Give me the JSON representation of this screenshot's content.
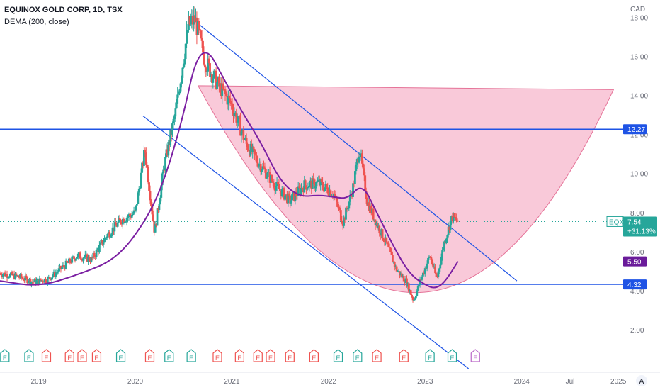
{
  "header": {
    "symbol_line": "EQUINOX GOLD CORP, 1D, TSX",
    "indicator_line": "DEMA (200, close)"
  },
  "colors": {
    "up": "#26a69a",
    "down": "#ef5350",
    "dema": "#7b1fa2",
    "trend": "#1e53e5",
    "cup_fill": "#f8bbd0",
    "cup_stroke": "#e57398",
    "price_badge": "#26a69a",
    "dema_badge": "#6a1b9a",
    "level_badge": "#1e53e5"
  },
  "chart_data": {
    "type": "candlestick",
    "currency": "CAD",
    "x_range": [
      2018.6,
      2025.05
    ],
    "y_range": [
      0.0,
      18.6
    ],
    "y_ticks": [
      "18.00",
      "16.00",
      "14.00",
      "12.00",
      "10.00",
      "8.00",
      "6.00",
      "4.00",
      "2.00"
    ],
    "y_tick_values": [
      18,
      16,
      14,
      12,
      10,
      8,
      6,
      4,
      2
    ],
    "x_ticks": [
      {
        "label": "2019",
        "t": 2019.0
      },
      {
        "label": "2020",
        "t": 2020.0
      },
      {
        "label": "2021",
        "t": 2021.0
      },
      {
        "label": "2022",
        "t": 2022.0
      },
      {
        "label": "2023",
        "t": 2023.0
      },
      {
        "label": "2024",
        "t": 2024.0
      },
      {
        "label": "Jul",
        "t": 2024.5
      },
      {
        "label": "2025",
        "t": 2025.0
      }
    ],
    "price_path": [
      [
        2018.6,
        4.9
      ],
      [
        2018.8,
        4.7
      ],
      [
        2018.95,
        4.45
      ],
      [
        2019.1,
        4.6
      ],
      [
        2019.25,
        5.2
      ],
      [
        2019.4,
        5.8
      ],
      [
        2019.55,
        5.6
      ],
      [
        2019.7,
        6.8
      ],
      [
        2019.85,
        7.6
      ],
      [
        2020.0,
        8.0
      ],
      [
        2020.1,
        11.2
      ],
      [
        2020.2,
        7.0
      ],
      [
        2020.3,
        10.4
      ],
      [
        2020.42,
        13.2
      ],
      [
        2020.55,
        17.6
      ],
      [
        2020.62,
        17.9
      ],
      [
        2020.72,
        15.8
      ],
      [
        2020.85,
        14.6
      ],
      [
        2021.0,
        13.5
      ],
      [
        2021.15,
        11.5
      ],
      [
        2021.3,
        10.4
      ],
      [
        2021.45,
        9.4
      ],
      [
        2021.6,
        8.6
      ],
      [
        2021.75,
        9.4
      ],
      [
        2021.9,
        9.5
      ],
      [
        2022.05,
        9.0
      ],
      [
        2022.15,
        7.5
      ],
      [
        2022.25,
        9.2
      ],
      [
        2022.32,
        11.3
      ],
      [
        2022.4,
        8.6
      ],
      [
        2022.5,
        7.4
      ],
      [
        2022.6,
        6.4
      ],
      [
        2022.7,
        5.1
      ],
      [
        2022.8,
        4.5
      ],
      [
        2022.88,
        3.5
      ],
      [
        2022.95,
        4.5
      ],
      [
        2023.05,
        5.8
      ],
      [
        2023.12,
        4.6
      ],
      [
        2023.2,
        6.5
      ],
      [
        2023.28,
        7.8
      ],
      [
        2023.34,
        7.54
      ]
    ],
    "dema_path": [
      [
        2018.6,
        4.5
      ],
      [
        2019.0,
        4.2
      ],
      [
        2019.4,
        4.8
      ],
      [
        2019.8,
        5.6
      ],
      [
        2020.1,
        7.5
      ],
      [
        2020.3,
        9.6
      ],
      [
        2020.5,
        13.0
      ],
      [
        2020.62,
        15.8
      ],
      [
        2020.75,
        16.4
      ],
      [
        2020.9,
        15.0
      ],
      [
        2021.1,
        13.2
      ],
      [
        2021.3,
        11.6
      ],
      [
        2021.5,
        9.6
      ],
      [
        2021.7,
        8.8
      ],
      [
        2021.9,
        8.9
      ],
      [
        2022.05,
        8.8
      ],
      [
        2022.2,
        8.7
      ],
      [
        2022.35,
        9.5
      ],
      [
        2022.5,
        8.0
      ],
      [
        2022.7,
        6.0
      ],
      [
        2022.85,
        4.8
      ],
      [
        2023.0,
        4.3
      ],
      [
        2023.1,
        4.1
      ],
      [
        2023.2,
        4.4
      ],
      [
        2023.34,
        5.5
      ]
    ],
    "horizontal_levels": [
      {
        "name": "resistance",
        "price": 12.27,
        "label": "12.27"
      },
      {
        "name": "support",
        "price": 4.32,
        "label": "4.32"
      }
    ],
    "trend_lines": [
      {
        "name": "upper-channel",
        "from": [
          2020.57,
          18.0
        ],
        "to": [
          2023.95,
          4.5
        ]
      },
      {
        "name": "lower-channel",
        "from": [
          2020.08,
          12.95
        ],
        "to": [
          2023.45,
          0.0
        ]
      }
    ],
    "cup": {
      "left": [
        2020.65,
        14.5
      ],
      "bottom": [
        2022.98,
        3.9
      ],
      "right": [
        2024.95,
        14.3
      ]
    },
    "last_price": {
      "ticker": "EQX",
      "price": "7.54",
      "change": "+31.13%",
      "value": 7.54
    },
    "dema_last": {
      "label": "5.50",
      "value": 5.5
    },
    "earnings_markers": [
      {
        "t": 2018.65,
        "type": "E",
        "color": "green"
      },
      {
        "t": 2018.9,
        "type": "E",
        "color": "green"
      },
      {
        "t": 2019.08,
        "type": "E",
        "color": "red"
      },
      {
        "t": 2019.32,
        "type": "E",
        "color": "red"
      },
      {
        "t": 2019.45,
        "type": "E",
        "color": "red"
      },
      {
        "t": 2019.6,
        "type": "E",
        "color": "red"
      },
      {
        "t": 2019.85,
        "type": "E",
        "color": "green"
      },
      {
        "t": 2020.15,
        "type": "E",
        "color": "red"
      },
      {
        "t": 2020.35,
        "type": "E",
        "color": "green"
      },
      {
        "t": 2020.58,
        "type": "E",
        "color": "green"
      },
      {
        "t": 2020.85,
        "type": "E",
        "color": "red"
      },
      {
        "t": 2021.08,
        "type": "E",
        "color": "red"
      },
      {
        "t": 2021.27,
        "type": "E",
        "color": "red"
      },
      {
        "t": 2021.4,
        "type": "E",
        "color": "red"
      },
      {
        "t": 2021.6,
        "type": "E",
        "color": "red"
      },
      {
        "t": 2021.85,
        "type": "E",
        "color": "red"
      },
      {
        "t": 2022.1,
        "type": "E",
        "color": "green"
      },
      {
        "t": 2022.3,
        "type": "E",
        "color": "green"
      },
      {
        "t": 2022.5,
        "type": "E",
        "color": "red"
      },
      {
        "t": 2022.78,
        "type": "E",
        "color": "red"
      },
      {
        "t": 2023.05,
        "type": "E",
        "color": "green"
      },
      {
        "t": 2023.28,
        "type": "E",
        "color": "green"
      },
      {
        "t": 2023.52,
        "type": "E",
        "color": "purple"
      }
    ]
  }
}
